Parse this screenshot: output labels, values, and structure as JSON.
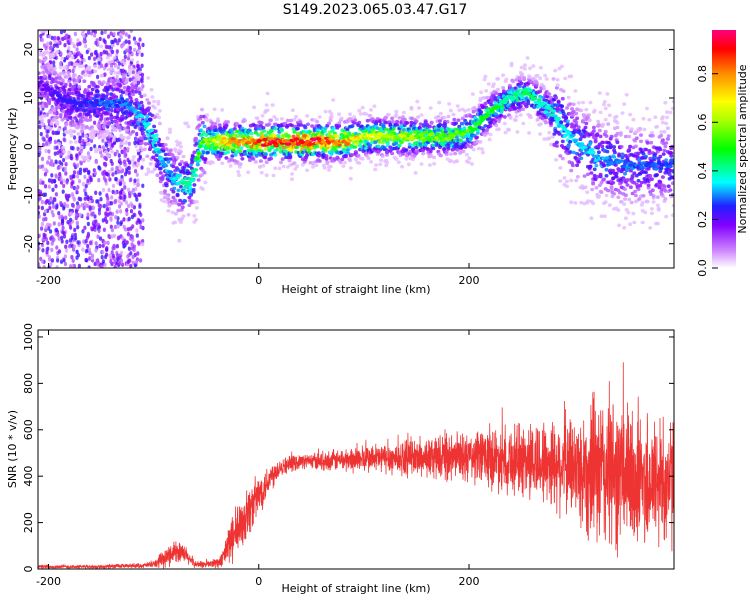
{
  "title": "S149.2023.065.03.47.G17",
  "chart_data": [
    {
      "type": "heatmap",
      "xlabel": "Height of straight line (km)",
      "ylabel": "Frequency (Hz)",
      "xlim": [
        -210,
        395
      ],
      "ylim": [
        -25,
        24
      ],
      "x_ticks": [
        "-200",
        "0",
        "200"
      ],
      "x_tick_values": [
        -200,
        0,
        200
      ],
      "y_ticks": [
        "20",
        "10",
        "0",
        "-10",
        "-20"
      ],
      "y_tick_values": [
        20,
        10,
        0,
        -10,
        -20
      ],
      "colorbar": {
        "label": "Normalized spectral amplitude",
        "ticks": [
          "0.0",
          "0.2",
          "0.4",
          "0.6",
          "0.8"
        ],
        "tick_values": [
          0.0,
          0.2,
          0.4,
          0.6,
          0.8
        ],
        "range": [
          0,
          0.98
        ]
      },
      "ridge": {
        "x": [
          -210,
          -180,
          -150,
          -130,
          -115,
          -100,
          -90,
          -80,
          -70,
          -62,
          -55,
          -40,
          -20,
          0,
          20,
          50,
          80,
          100,
          130,
          160,
          180,
          200,
          220,
          240,
          255,
          275,
          300,
          320,
          350,
          395
        ],
        "y": [
          13,
          9,
          9,
          9,
          7,
          2,
          -4,
          -7,
          -8,
          -6,
          1,
          1,
          1,
          1,
          1,
          1,
          1,
          2,
          2,
          2,
          2,
          3,
          7,
          10,
          11,
          8,
          1,
          -2,
          -4,
          -4
        ],
        "peak_amplitude": [
          0.2,
          0.25,
          0.3,
          0.3,
          0.35,
          0.4,
          0.35,
          0.35,
          0.45,
          0.45,
          0.55,
          0.7,
          0.85,
          0.9,
          0.95,
          0.95,
          0.85,
          0.7,
          0.65,
          0.6,
          0.6,
          0.55,
          0.5,
          0.45,
          0.45,
          0.4,
          0.35,
          0.35,
          0.3,
          0.3
        ]
      }
    },
    {
      "type": "line",
      "xlabel": "Height of straight line (km)",
      "ylabel": "SNR (10 * v/v)",
      "xlim": [
        -210,
        395
      ],
      "ylim": [
        0,
        1030
      ],
      "x_ticks": [
        "-200",
        "0",
        "200"
      ],
      "x_tick_values": [
        -200,
        0,
        200
      ],
      "y_ticks": [
        "0",
        "200",
        "400",
        "600",
        "800",
        "1000"
      ],
      "y_tick_values": [
        0,
        200,
        400,
        600,
        800,
        1000
      ],
      "color": "#ee3333",
      "envelope": {
        "x": [
          -210,
          -150,
          -110,
          -100,
          -90,
          -80,
          -70,
          -60,
          -50,
          -35,
          -30,
          -20,
          -10,
          0,
          10,
          20,
          40,
          60,
          100,
          150,
          200,
          220,
          250,
          280,
          300,
          315,
          330,
          350,
          370,
          395
        ],
        "mean": [
          10,
          10,
          15,
          20,
          40,
          80,
          60,
          20,
          20,
          30,
          100,
          160,
          250,
          320,
          390,
          440,
          465,
          465,
          475,
          480,
          480,
          480,
          470,
          460,
          440,
          420,
          420,
          400,
          380,
          380
        ],
        "spread": [
          8,
          8,
          10,
          15,
          40,
          50,
          40,
          15,
          15,
          30,
          80,
          120,
          110,
          90,
          70,
          40,
          30,
          40,
          60,
          80,
          110,
          130,
          160,
          200,
          220,
          300,
          350,
          320,
          300,
          280
        ]
      }
    }
  ]
}
